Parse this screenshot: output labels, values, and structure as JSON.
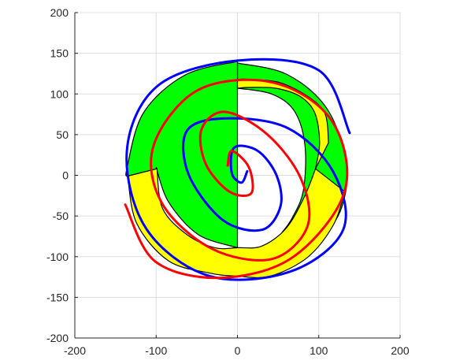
{
  "chart_data": {
    "type": "line",
    "title": "",
    "xlabel": "",
    "ylabel": "",
    "xlim": [
      -200,
      200
    ],
    "ylim": [
      -200,
      200
    ],
    "x_ticks": [
      "-200",
      "-100",
      "0",
      "100",
      "200"
    ],
    "y_ticks": [
      "200",
      "150",
      "100",
      "50",
      "0",
      "-50",
      "-100",
      "-150",
      "-200"
    ],
    "grid": true,
    "legend": "none",
    "colors": {
      "blue_spiral": "#0000ff",
      "red_spiral": "#ff0000",
      "green_band": "#00ff00",
      "yellow_band": "#ffff00",
      "band_edge": "#000000",
      "axis": "#262626",
      "grid": "#dfdfdf"
    },
    "series": [
      {
        "color": "#0000ff",
        "kind": "spiral",
        "x": [
          12,
          5,
          -7,
          -4,
          25,
          48,
          53,
          30,
          -18,
          -60,
          -62,
          -14,
          62,
          118,
          130,
          66,
          -34,
          -112,
          -136,
          -98,
          0,
          100,
          138
        ],
        "y": [
          5,
          -9,
          3,
          34,
          30,
          0,
          -38,
          -67,
          -55,
          1,
          55,
          70,
          58,
          4,
          -67,
          -118,
          -124,
          -66,
          30,
          110,
          141,
          129,
          52
        ]
      },
      {
        "color": "#ff0000",
        "kind": "spiral",
        "x": [
          -12,
          -7,
          14,
          17,
          -10,
          -39,
          -44,
          -15,
          37,
          78,
          86,
          42,
          -32,
          -93,
          -103,
          -48,
          44,
          116,
          132,
          69,
          -20,
          -101,
          -138
        ],
        "y": [
          12,
          30,
          10,
          -22,
          -20,
          14,
          57,
          78,
          50,
          -4,
          -63,
          -103,
          -90,
          -34,
          37,
          105,
          114,
          67,
          -19,
          -100,
          -126,
          -106,
          -36
        ]
      }
    ],
    "fill_bands": [
      {
        "color": "#00ff00",
        "outer_x": [
          0,
          61,
          110,
          134,
          128,
          102,
          84
        ],
        "outer_y": [
          138,
          124,
          82,
          15,
          -40,
          -81,
          -96
        ],
        "inner_x": [
          0,
          42,
          70,
          83,
          81,
          67,
          55
        ],
        "inner_y": [
          107,
          100,
          79,
          37,
          -19,
          -53,
          -70
        ]
      },
      {
        "color": "#00ff00",
        "outer_x": [
          0,
          -65,
          -116,
          -136,
          -135
        ],
        "outer_y": [
          140,
          123,
          76,
          8,
          -1
        ],
        "inner_x": [
          0,
          -48,
          -84,
          -99,
          -99
        ],
        "inner_y": [
          -89,
          -73,
          -34,
          6,
          8
        ]
      },
      {
        "color": "#ffff00",
        "outer_x": [
          -135,
          -124,
          -85,
          -35,
          0,
          40,
          86,
          118,
          132
        ],
        "outer_y": [
          -1,
          -59,
          -105,
          -120,
          -124,
          -124,
          -101,
          -61,
          -20
        ],
        "inner_x": [
          -99,
          -92,
          -62,
          -28,
          0,
          30,
          60,
          82,
          96
        ],
        "inner_y": [
          8,
          -41,
          -73,
          -89,
          -89,
          -87,
          -65,
          -27,
          8
        ]
      },
      {
        "color": "#ffff00",
        "outer_x": [
          96,
          101,
          95,
          77,
          47,
          14,
          0
        ],
        "outer_y": [
          8,
          41,
          77,
          97,
          107,
          108,
          107
        ],
        "inner_x": [
          112,
          108,
          88,
          52,
          14,
          0
        ],
        "inner_y": [
          40,
          75,
          96,
          114,
          118,
          118
        ]
      }
    ]
  }
}
